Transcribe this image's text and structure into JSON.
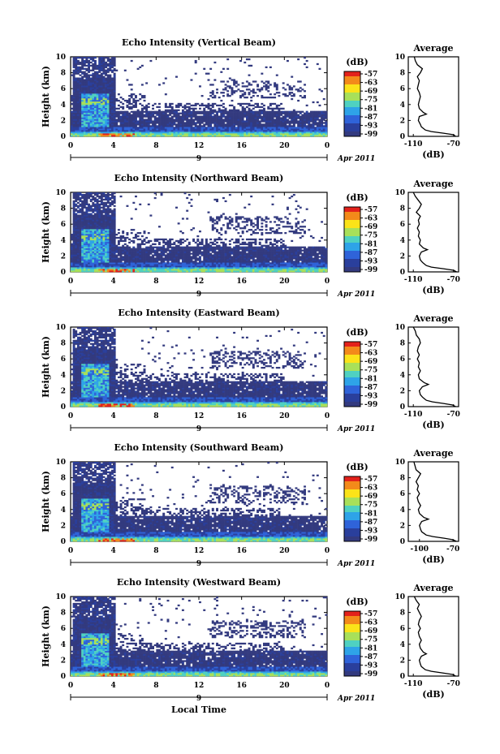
{
  "figure": {
    "bottom_xlabel": "Local Time",
    "x_axis_label": "Local Time",
    "y_axis_label": "Height (km)",
    "colorbar_unit": "(dB)",
    "average_title": "Average",
    "average_xlabel": "(dB)",
    "day_label": "9",
    "month_label": "Apr 2011"
  },
  "colorbar_ticks": [
    "-57",
    "-63",
    "-69",
    "-75",
    "-81",
    "-87",
    "-93",
    "-99"
  ],
  "colorscale": [
    "#e3211b",
    "#f38a1a",
    "#fbe319",
    "#a8e05a",
    "#4fd1c1",
    "#2ea3e8",
    "#2f63d9",
    "#2a3f9c",
    "#333a7f"
  ],
  "x_ticks": [
    "0",
    "4",
    "8",
    "12",
    "16",
    "20",
    "0"
  ],
  "y_ticks": [
    "0",
    "2",
    "4",
    "6",
    "8",
    "10"
  ],
  "chart_data": [
    {
      "type": "heatmap",
      "title": "Echo Intensity (Vertical Beam)",
      "xlabel": "Local Time",
      "ylabel": "Height (km)",
      "xlim": [
        0,
        24
      ],
      "ylim": [
        0,
        10
      ],
      "colorbar_label": "(dB)",
      "colorbar_ticks": [
        -57,
        -63,
        -69,
        -75,
        -81,
        -87,
        -93,
        -99
      ],
      "average_profile": {
        "title": "Average",
        "xlabel": "(dB)",
        "xticks": [
          "-110",
          "-70"
        ],
        "xlim": [
          -115,
          -65
        ],
        "height_km": [
          0,
          0.2,
          0.4,
          0.6,
          0.8,
          1,
          1.2,
          1.5,
          2,
          2.5,
          2.8,
          3,
          3.5,
          4,
          4.5,
          5,
          5.5,
          6,
          6.5,
          7,
          7.5,
          8,
          8.5,
          9,
          9.5,
          10
        ],
        "db": [
          -68,
          -70,
          -80,
          -92,
          -98,
          -100,
          -102,
          -103,
          -105,
          -104,
          -97,
          -100,
          -104,
          -105,
          -104,
          -103,
          -104,
          -106,
          -105,
          -104,
          -106,
          -103,
          -101,
          -106,
          -108,
          -109
        ]
      }
    },
    {
      "type": "heatmap",
      "title": "Echo Intensity (Northward Beam)",
      "xlabel": "Local Time",
      "ylabel": "Height (km)",
      "xlim": [
        0,
        24
      ],
      "ylim": [
        0,
        10
      ],
      "colorbar_label": "(dB)",
      "colorbar_ticks": [
        -57,
        -63,
        -69,
        -75,
        -81,
        -87,
        -93,
        -99
      ],
      "average_profile": {
        "title": "Average",
        "xlabel": "(dB)",
        "xticks": [
          "-110",
          "-70"
        ],
        "xlim": [
          -115,
          -65
        ],
        "height_km": [
          0,
          0.2,
          0.4,
          0.6,
          0.8,
          1,
          1.2,
          1.5,
          2,
          2.5,
          2.8,
          3,
          3.5,
          4,
          4.5,
          5,
          5.5,
          6,
          6.5,
          7,
          7.5,
          8,
          8.5,
          9,
          9.5,
          10
        ],
        "db": [
          -67,
          -70,
          -80,
          -92,
          -97,
          -99,
          -101,
          -103,
          -104,
          -102,
          -96,
          -100,
          -104,
          -103,
          -105,
          -104,
          -106,
          -104,
          -105,
          -103,
          -107,
          -104,
          -102,
          -105,
          -108,
          -110
        ]
      }
    },
    {
      "type": "heatmap",
      "title": "Echo Intensity (Eastward Beam)",
      "xlabel": "Local Time",
      "ylabel": "Height (km)",
      "xlim": [
        0,
        24
      ],
      "ylim": [
        0,
        10
      ],
      "colorbar_label": "(dB)",
      "colorbar_ticks": [
        -57,
        -63,
        -69,
        -75,
        -81,
        -87,
        -93,
        -99
      ],
      "average_profile": {
        "title": "Average",
        "xlabel": "(dB)",
        "xticks": [
          "-110",
          "-70"
        ],
        "xlim": [
          -115,
          -65
        ],
        "height_km": [
          0,
          0.2,
          0.4,
          0.6,
          0.8,
          1,
          1.2,
          1.5,
          2,
          2.5,
          2.8,
          3,
          3.5,
          4,
          4.5,
          5,
          5.5,
          6,
          6.5,
          7,
          7.5,
          8,
          8.5,
          9,
          9.5,
          10
        ],
        "db": [
          -68,
          -71,
          -80,
          -91,
          -97,
          -99,
          -101,
          -103,
          -104,
          -101,
          -95,
          -99,
          -104,
          -105,
          -103,
          -105,
          -104,
          -106,
          -104,
          -106,
          -105,
          -103,
          -104,
          -107,
          -108,
          -110
        ]
      }
    },
    {
      "type": "heatmap",
      "title": "Echo Intensity (Southward Beam)",
      "xlabel": "Local Time",
      "ylabel": "Height (km)",
      "xlim": [
        0,
        24
      ],
      "ylim": [
        0,
        10
      ],
      "colorbar_label": "(dB)",
      "colorbar_ticks": [
        -57,
        -63,
        -69,
        -75,
        -81,
        -87,
        -93,
        -99
      ],
      "average_profile": {
        "title": "Average",
        "xlabel": "(dB)",
        "xticks": [
          "-100",
          "-70"
        ],
        "xlim": [
          -110,
          -65
        ],
        "height_km": [
          0,
          0.2,
          0.4,
          0.6,
          0.8,
          1,
          1.2,
          1.5,
          2,
          2.5,
          2.8,
          3,
          3.5,
          4,
          4.5,
          5,
          5.5,
          6,
          6.5,
          7,
          7.5,
          8,
          8.5,
          9,
          9.5,
          10
        ],
        "db": [
          -67,
          -70,
          -78,
          -88,
          -94,
          -96,
          -98,
          -99,
          -100,
          -98,
          -92,
          -96,
          -100,
          -101,
          -99,
          -101,
          -102,
          -100,
          -102,
          -101,
          -103,
          -101,
          -99,
          -103,
          -104,
          -105
        ]
      }
    },
    {
      "type": "heatmap",
      "title": "Echo Intensity (Westward Beam)",
      "xlabel": "Local Time",
      "ylabel": "Height (km)",
      "xlim": [
        0,
        24
      ],
      "ylim": [
        0,
        10
      ],
      "colorbar_label": "(dB)",
      "colorbar_ticks": [
        -57,
        -63,
        -69,
        -75,
        -81,
        -87,
        -93,
        -99
      ],
      "average_profile": {
        "title": "Average",
        "xlabel": "(dB)",
        "xticks": [
          "-110",
          "-70"
        ],
        "xlim": [
          -115,
          -65
        ],
        "height_km": [
          0,
          0.2,
          0.4,
          0.6,
          0.8,
          1,
          1.2,
          1.5,
          2,
          2.5,
          2.8,
          3,
          3.5,
          4,
          4.5,
          5,
          5.5,
          6,
          6.5,
          7,
          7.5,
          8,
          8.5,
          9,
          9.5,
          10
        ],
        "db": [
          -68,
          -71,
          -81,
          -92,
          -98,
          -100,
          -102,
          -103,
          -104,
          -102,
          -97,
          -100,
          -103,
          -104,
          -102,
          -104,
          -105,
          -103,
          -105,
          -104,
          -102,
          -104,
          -106,
          -104,
          -107,
          -109
        ]
      }
    }
  ]
}
